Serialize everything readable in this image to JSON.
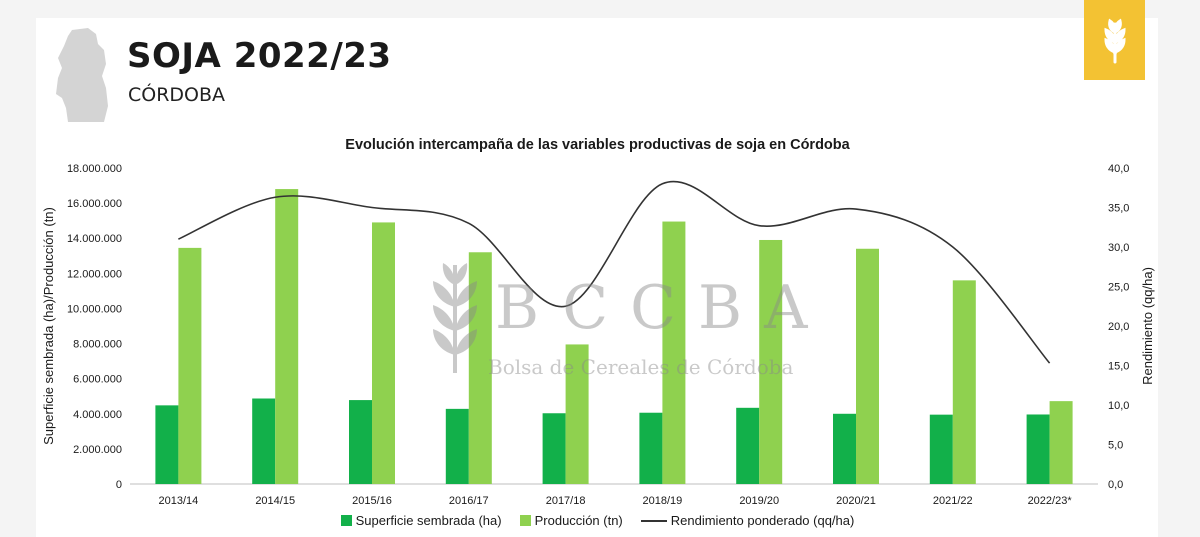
{
  "header": {
    "title": "SOJA 2022/23",
    "subtitle": "CÓRDOBA",
    "logo_icon": "wheat-icon"
  },
  "watermark": {
    "letters": "BCCBA",
    "text": "Bolsa de Cereales de Córdoba"
  },
  "colors": {
    "superficie": "#12b04a",
    "produccion": "#8fd14f",
    "rendimiento": "#333333",
    "accent": "#f3c233"
  },
  "chart_data": {
    "type": "bar",
    "title": "Evolución intercampaña de las variables productivas de soja en Córdoba",
    "categories": [
      "2013/14",
      "2014/15",
      "2015/16",
      "2016/17",
      "2017/18",
      "2018/19",
      "2019/20",
      "2020/21",
      "2021/22",
      "2022/23*"
    ],
    "series": [
      {
        "name": "Superficie sembrada (ha)",
        "type": "bar",
        "axis": "left",
        "values": [
          4480000,
          4870000,
          4780000,
          4280000,
          4030000,
          4060000,
          4340000,
          4000000,
          3950000,
          3960000
        ]
      },
      {
        "name": "Producción (tn)",
        "type": "bar",
        "axis": "left",
        "values": [
          13450000,
          16800000,
          14900000,
          13200000,
          7950000,
          14950000,
          13900000,
          13400000,
          11600000,
          4720000
        ]
      },
      {
        "name": "Rendimiento ponderado (qq/ha)",
        "type": "line",
        "axis": "right",
        "values": [
          31.0,
          36.3,
          35.0,
          33.0,
          22.5,
          38.0,
          32.7,
          34.8,
          30.0,
          15.3
        ]
      }
    ],
    "ylabel": "Superficie sembrada (ha)/Producción (tn)",
    "y2label": "Rendimiento (qq/ha)",
    "ylim": [
      0,
      18000000
    ],
    "y2lim": [
      0,
      40
    ],
    "yticks": [
      "0",
      "2.000.000",
      "4.000.000",
      "6.000.000",
      "8.000.000",
      "10.000.000",
      "12.000.000",
      "14.000.000",
      "16.000.000",
      "18.000.000"
    ],
    "y2ticks": [
      "0,0",
      "5,0",
      "10,0",
      "15,0",
      "20,0",
      "25,0",
      "30,0",
      "35,0",
      "40,0"
    ],
    "legend_position": "bottom",
    "grid": false
  }
}
